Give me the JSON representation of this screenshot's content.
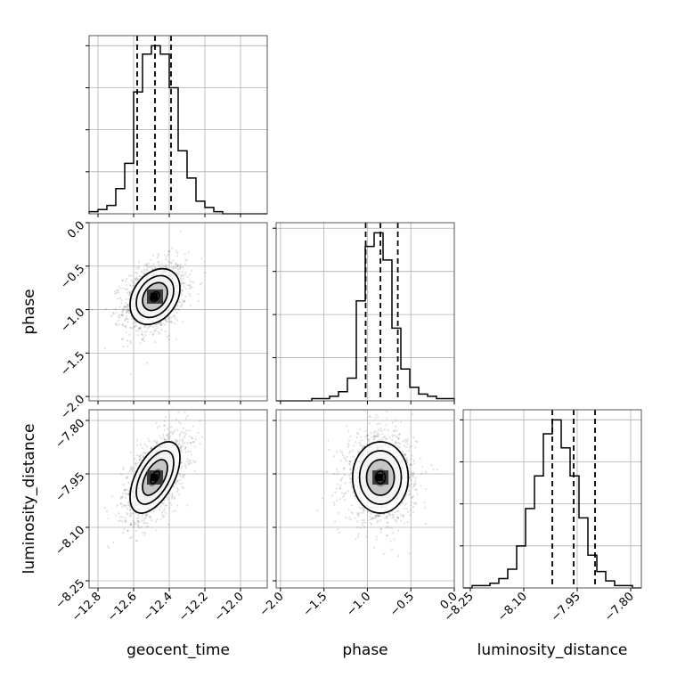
{
  "chart_data": {
    "type": "corner",
    "parameters": [
      {
        "name": "geocent_time",
        "range": [
          -12.85,
          -11.85
        ],
        "ticks": [
          -12.8,
          -12.6,
          -12.4,
          -12.2,
          -12.0
        ],
        "tick_labels": [
          "−12.8",
          "−12.6",
          "−12.4",
          "−12.2",
          "−12.0"
        ],
        "mean": -12.48,
        "std": 0.07,
        "quantiles": [
          -12.58,
          -12.48,
          -12.39
        ]
      },
      {
        "name": "phase",
        "range": [
          -2.05,
          0.0
        ],
        "ticks": [
          -2.0,
          -1.5,
          -1.0,
          -0.5,
          0.0
        ],
        "tick_labels": [
          "−2.0",
          "−1.5",
          "−1.0",
          "−0.5",
          "0.0"
        ],
        "mean": -0.85,
        "std": 0.16,
        "quantiles": [
          -1.02,
          -0.85,
          -0.65
        ]
      },
      {
        "name": "luminosity_distance",
        "range": [
          -8.27,
          -7.77
        ],
        "ticks": [
          -8.25,
          -8.1,
          -7.95,
          -7.8
        ],
        "tick_labels": [
          "−8.25",
          "−8.10",
          "−7.95",
          "−7.80"
        ],
        "mean": -7.96,
        "std": 0.05,
        "quantiles": [
          -8.02,
          -7.96,
          -7.9
        ]
      }
    ],
    "histograms": [
      {
        "param": "geocent_time",
        "counts": [
          1,
          2,
          4,
          12,
          24,
          58,
          76,
          80,
          76,
          60,
          30,
          17,
          6,
          3,
          1,
          0,
          0,
          0,
          0,
          0
        ]
      },
      {
        "param": "phase",
        "counts": [
          0,
          0,
          0,
          0,
          1,
          1,
          2,
          4,
          10,
          44,
          68,
          74,
          62,
          32,
          14,
          6,
          3,
          2,
          1,
          1
        ]
      },
      {
        "param": "luminosity_distance",
        "counts": [
          0,
          1,
          1,
          2,
          4,
          8,
          18,
          34,
          48,
          66,
          72,
          60,
          48,
          30,
          14,
          7,
          3,
          1,
          1,
          0
        ]
      }
    ],
    "correlations": {
      "geocent_time|phase": 0.3,
      "geocent_time|luminosity_distance": 0.55,
      "phase|luminosity_distance": 0.0
    },
    "grid": true
  }
}
